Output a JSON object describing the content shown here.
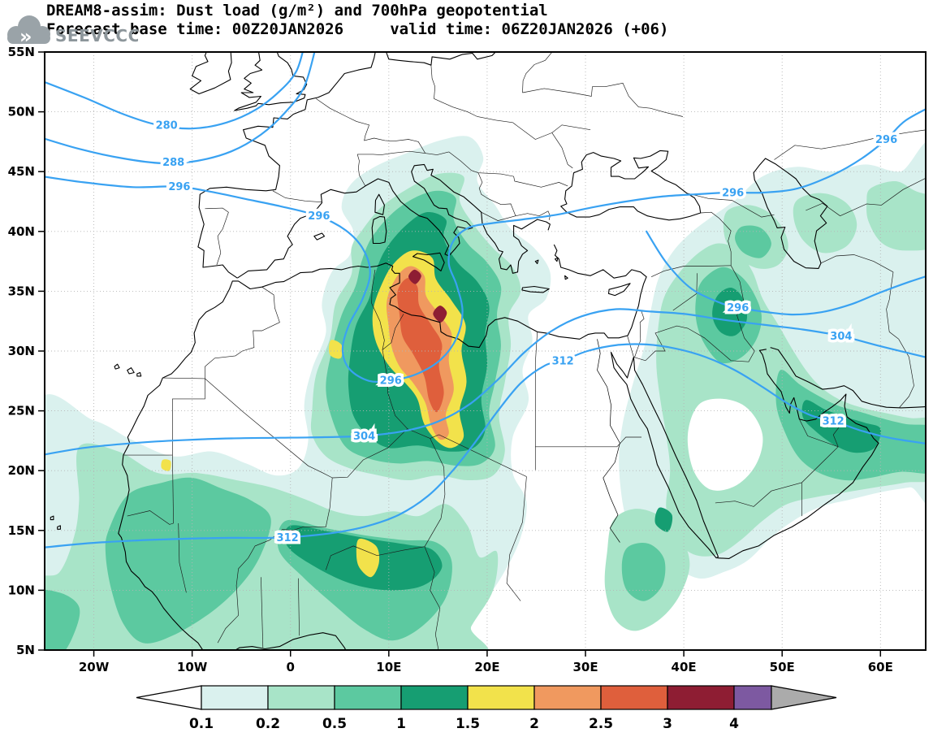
{
  "header": {
    "title_line1": "DREAM8-assim: Dust load (g/m²) and 700hPa geopotential",
    "title_line2": "Forecast base time: 00Z20JAN2026     valid time: 06Z20JAN2026 (+06)"
  },
  "logo": {
    "text": "SEEVCCC"
  },
  "chart_data": {
    "type": "heatmap",
    "title": "DREAM8-assim: Dust load (g/m²) and 700hPa geopotential",
    "variable": "Dust load (g/m²)",
    "overlay_variable": "700hPa geopotential",
    "forecast_base_time": "00Z20JAN2026",
    "valid_time": "06Z20JAN2026",
    "lead": "+06",
    "lon_range": [
      -25,
      64.6
    ],
    "lat_range": [
      5,
      55
    ],
    "grid": {
      "lat_step": 5,
      "lon_step": 10,
      "style": "dotted"
    },
    "lat_ticks": [
      {
        "label": "55N",
        "value": 55
      },
      {
        "label": "50N",
        "value": 50
      },
      {
        "label": "45N",
        "value": 45
      },
      {
        "label": "40N",
        "value": 40
      },
      {
        "label": "35N",
        "value": 35
      },
      {
        "label": "30N",
        "value": 30
      },
      {
        "label": "25N",
        "value": 25
      },
      {
        "label": "20N",
        "value": 20
      },
      {
        "label": "15N",
        "value": 15
      },
      {
        "label": "10N",
        "value": 10
      },
      {
        "label": "5N",
        "value": 5
      }
    ],
    "lon_ticks": [
      {
        "label": "20W",
        "value": -20
      },
      {
        "label": "10W",
        "value": -10
      },
      {
        "label": "0",
        "value": 0
      },
      {
        "label": "10E",
        "value": 10
      },
      {
        "label": "20E",
        "value": 20
      },
      {
        "label": "30E",
        "value": 30
      },
      {
        "label": "40E",
        "value": 40
      },
      {
        "label": "50E",
        "value": 50
      },
      {
        "label": "60E",
        "value": 60
      }
    ],
    "dust_levels": [
      {
        "min": 0.1,
        "max": 0.2,
        "color": "#daf1ee"
      },
      {
        "min": 0.2,
        "max": 0.5,
        "color": "#a8e4c8"
      },
      {
        "min": 0.5,
        "max": 1,
        "color": "#5cc9a0"
      },
      {
        "min": 1,
        "max": 1.5,
        "color": "#169e72"
      },
      {
        "min": 1.5,
        "max": 2,
        "color": "#f2e24b"
      },
      {
        "min": 2,
        "max": 2.5,
        "color": "#f0995f"
      },
      {
        "min": 2.5,
        "max": 3,
        "color": "#df5f3c"
      },
      {
        "min": 3,
        "max": 4,
        "color": "#8e1d33"
      },
      {
        "min": 4,
        "max": null,
        "color": "#7d59a1"
      }
    ],
    "underflow_color": "#ffffff",
    "overflow_arrow_color": "#ababab",
    "geopotential_contour_levels": [
      280,
      288,
      296,
      304,
      312
    ],
    "contour_line_color": "#39a2f2",
    "contour_labels": [
      {
        "value": "280",
        "lon": -12.6,
        "lat": 48.9
      },
      {
        "value": "288",
        "lon": -11.9,
        "lat": 45.8
      },
      {
        "value": "296",
        "lon": -11.3,
        "lat": 43.75
      },
      {
        "value": "296",
        "lon": 2.9,
        "lat": 41.3
      },
      {
        "value": "296",
        "lon": 10.2,
        "lat": 27.55
      },
      {
        "value": "304",
        "lon": 7.5,
        "lat": 22.9
      },
      {
        "value": "312",
        "lon": -0.3,
        "lat": 14.4
      },
      {
        "value": "312",
        "lon": 27.7,
        "lat": 29.2
      },
      {
        "value": "296",
        "lon": 45.0,
        "lat": 43.25
      },
      {
        "value": "296",
        "lon": 45.5,
        "lat": 33.65
      },
      {
        "value": "304",
        "lon": 56.0,
        "lat": 31.25
      },
      {
        "value": "312",
        "lon": 55.2,
        "lat": 24.15
      },
      {
        "value": "296",
        "lon": 60.6,
        "lat": 47.7
      }
    ],
    "colorbar_labels": [
      "0.1",
      "0.2",
      "0.5",
      "1",
      "1.5",
      "2",
      "2.5",
      "3",
      "4"
    ],
    "legend_position": "bottom"
  }
}
